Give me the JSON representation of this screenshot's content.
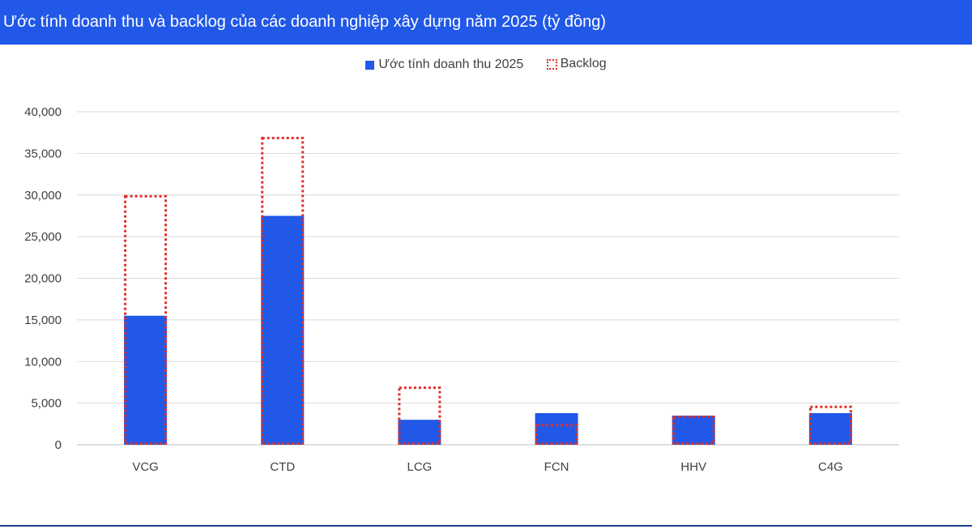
{
  "chart_data": {
    "type": "bar",
    "title": "Ước tính doanh thu và backlog của các doanh nghiệp xây dựng năm 2025 (tỷ đồng)",
    "categories": [
      "VCG",
      "CTD",
      "LCG",
      "FCN",
      "HHV",
      "C4G"
    ],
    "series": [
      {
        "name": "Ước tính doanh thu 2025",
        "style": "solid",
        "color": "#2158e8",
        "values": [
          15500,
          27500,
          3000,
          3800,
          3500,
          3800
        ]
      },
      {
        "name": "Backlog",
        "style": "dotted-outline",
        "color": "#e0302a",
        "values": [
          30000,
          37000,
          7000,
          2500,
          3500,
          4700
        ]
      }
    ],
    "ylim": [
      0,
      40000
    ],
    "yticks": [
      "0",
      "5,000",
      "10,000",
      "15,000",
      "20,000",
      "25,000",
      "30,000",
      "35,000",
      "40,000"
    ],
    "grid": true,
    "legend_position": "top-center",
    "xlabel": "",
    "ylabel": ""
  }
}
